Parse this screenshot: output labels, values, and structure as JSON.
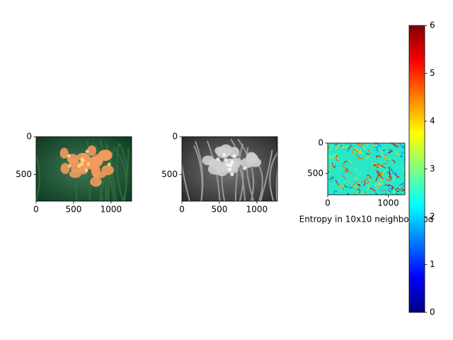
{
  "chart_data": [
    {
      "type": "image",
      "image": "color",
      "xlim": [
        0,
        1275
      ],
      "ylim": [
        850,
        0
      ],
      "xticks": [
        0,
        500,
        1000
      ],
      "yticks": [
        0,
        500
      ]
    },
    {
      "type": "image",
      "image": "gray",
      "xlim": [
        0,
        1275
      ],
      "ylim": [
        850,
        0
      ],
      "xticks": [
        0,
        500,
        1000
      ],
      "yticks": [
        0,
        500
      ]
    },
    {
      "type": "image",
      "image": "entropy",
      "xlabel": "Entropy in 10x10 neighborhood",
      "xlim": [
        0,
        1275
      ],
      "ylim": [
        850,
        0
      ],
      "xticks": [
        0,
        1000
      ],
      "yticks": [
        0,
        500
      ]
    },
    {
      "type": "colorbar",
      "colormap": "jet",
      "ylim": [
        0,
        6
      ],
      "yticks": [
        0,
        1,
        2,
        3,
        4,
        5,
        6
      ]
    }
  ]
}
